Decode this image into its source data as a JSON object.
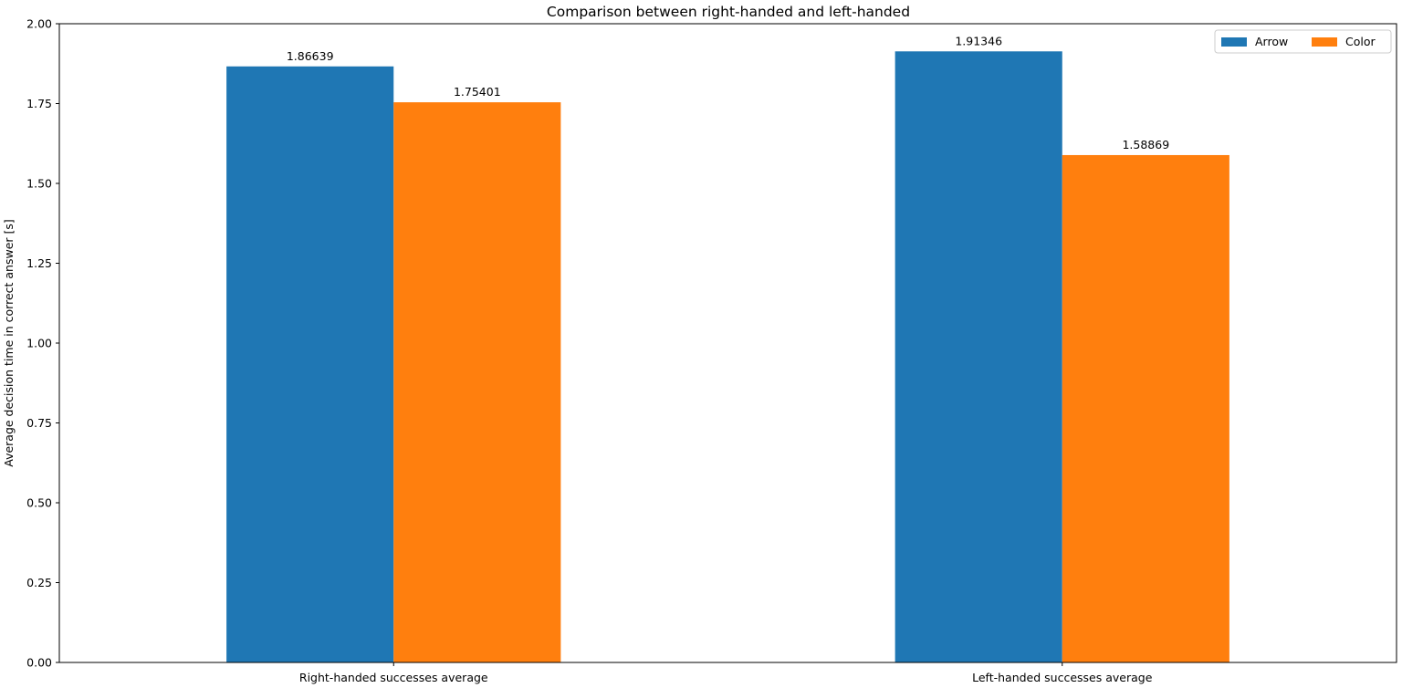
{
  "chart_data": {
    "type": "bar",
    "title": "Comparison between right-handed and left-handed",
    "xlabel": "",
    "ylabel": "Average decision time in correct answer [s]",
    "categories": [
      "Right-handed successes average",
      "Left-handed successes average"
    ],
    "series": [
      {
        "name": "Arrow",
        "values": [
          1.86639,
          1.91346
        ],
        "labels": [
          "1.86639",
          "1.91346"
        ],
        "color": "#1f77b4"
      },
      {
        "name": "Color",
        "values": [
          1.75401,
          1.58869
        ],
        "labels": [
          "1.75401",
          "1.58869"
        ],
        "color": "#ff7f0e"
      }
    ],
    "ylim": [
      0,
      2.0
    ],
    "yticks": [
      0.0,
      0.25,
      0.5,
      0.75,
      1.0,
      1.25,
      1.5,
      1.75,
      2.0
    ],
    "ytick_labels": [
      "0.00",
      "0.25",
      "0.50",
      "0.75",
      "1.00",
      "1.25",
      "1.50",
      "1.75",
      "2.00"
    ],
    "grid": false,
    "legend_position": "top-right"
  }
}
